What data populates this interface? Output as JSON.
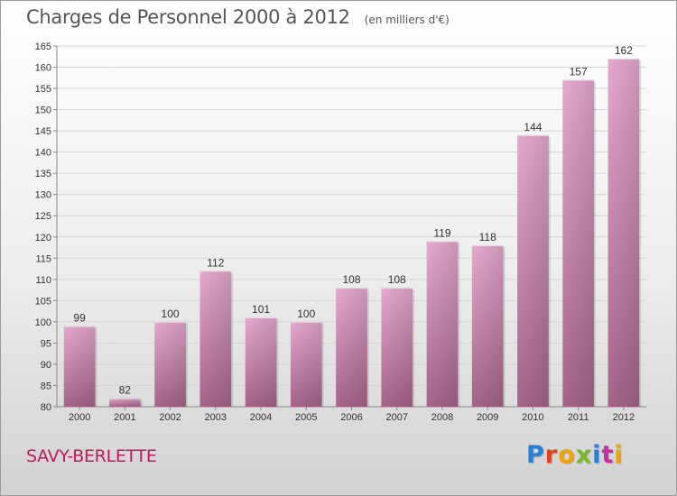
{
  "header": {
    "title": "Charges de Personnel 2000 à 2012",
    "subtitle": "(en milliers d'€)"
  },
  "footer": {
    "town": "SAVY-BERLETTE",
    "logo": [
      "P",
      "r",
      "o",
      "x",
      "i",
      "t",
      "i"
    ]
  },
  "chart_data": {
    "type": "bar",
    "categories": [
      "2000",
      "2001",
      "2002",
      "2003",
      "2004",
      "2005",
      "2006",
      "2007",
      "2008",
      "2009",
      "2010",
      "2011",
      "2012"
    ],
    "values": [
      99,
      82,
      100,
      112,
      101,
      100,
      108,
      108,
      119,
      118,
      144,
      157,
      162
    ],
    "ylim": [
      80,
      165
    ],
    "yticks": [
      80,
      85,
      90,
      95,
      100,
      105,
      110,
      115,
      120,
      125,
      130,
      135,
      140,
      145,
      150,
      155,
      160,
      165
    ],
    "grid": true,
    "bar_color": "#d98dbb"
  }
}
